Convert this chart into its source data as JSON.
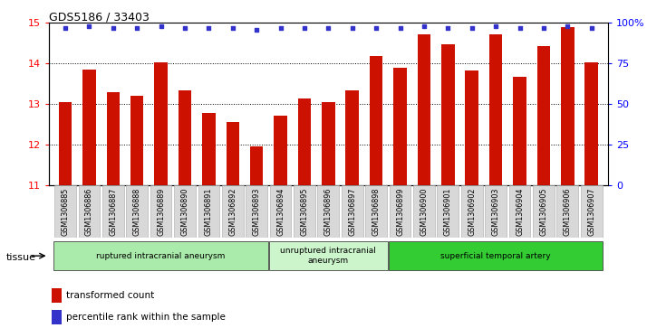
{
  "title": "GDS5186 / 33403",
  "samples": [
    "GSM1306885",
    "GSM1306886",
    "GSM1306887",
    "GSM1306888",
    "GSM1306889",
    "GSM1306890",
    "GSM1306891",
    "GSM1306892",
    "GSM1306893",
    "GSM1306894",
    "GSM1306895",
    "GSM1306896",
    "GSM1306897",
    "GSM1306898",
    "GSM1306899",
    "GSM1306900",
    "GSM1306901",
    "GSM1306902",
    "GSM1306903",
    "GSM1306904",
    "GSM1306905",
    "GSM1306906",
    "GSM1306907"
  ],
  "bar_values": [
    13.05,
    13.85,
    13.3,
    13.2,
    14.03,
    13.35,
    12.78,
    12.55,
    11.97,
    12.72,
    13.15,
    13.05,
    13.35,
    14.18,
    13.9,
    14.72,
    14.48,
    13.83,
    14.72,
    13.68,
    14.43,
    14.9,
    14.02
  ],
  "percentile_values": [
    97,
    98,
    97,
    97,
    98,
    97,
    97,
    97,
    96,
    97,
    97,
    97,
    97,
    97,
    97,
    98,
    97,
    97,
    98,
    97,
    97,
    98,
    97
  ],
  "bar_color": "#cc1100",
  "percentile_color": "#3333cc",
  "ylim_left": [
    11,
    15
  ],
  "ylim_right": [
    0,
    100
  ],
  "yticks_left": [
    11,
    12,
    13,
    14,
    15
  ],
  "yticks_right": [
    0,
    25,
    50,
    75,
    100
  ],
  "ytick_labels_right": [
    "0",
    "25",
    "50",
    "75",
    "100%"
  ],
  "groups": [
    {
      "label": "ruptured intracranial aneurysm",
      "start": 0,
      "end": 8,
      "color": "#aaeaaa"
    },
    {
      "label": "unruptured intracranial\naneurysm",
      "start": 9,
      "end": 13,
      "color": "#ccf5cc"
    },
    {
      "label": "superficial temporal artery",
      "start": 14,
      "end": 22,
      "color": "#33cc33"
    }
  ],
  "tissue_label": "tissue",
  "legend_bar_label": "transformed count",
  "legend_dot_label": "percentile rank within the sample",
  "xtick_bg_color": "#d8d8d8",
  "plot_bg_color": "#ffffff",
  "grid_dotline_color": "#555555"
}
